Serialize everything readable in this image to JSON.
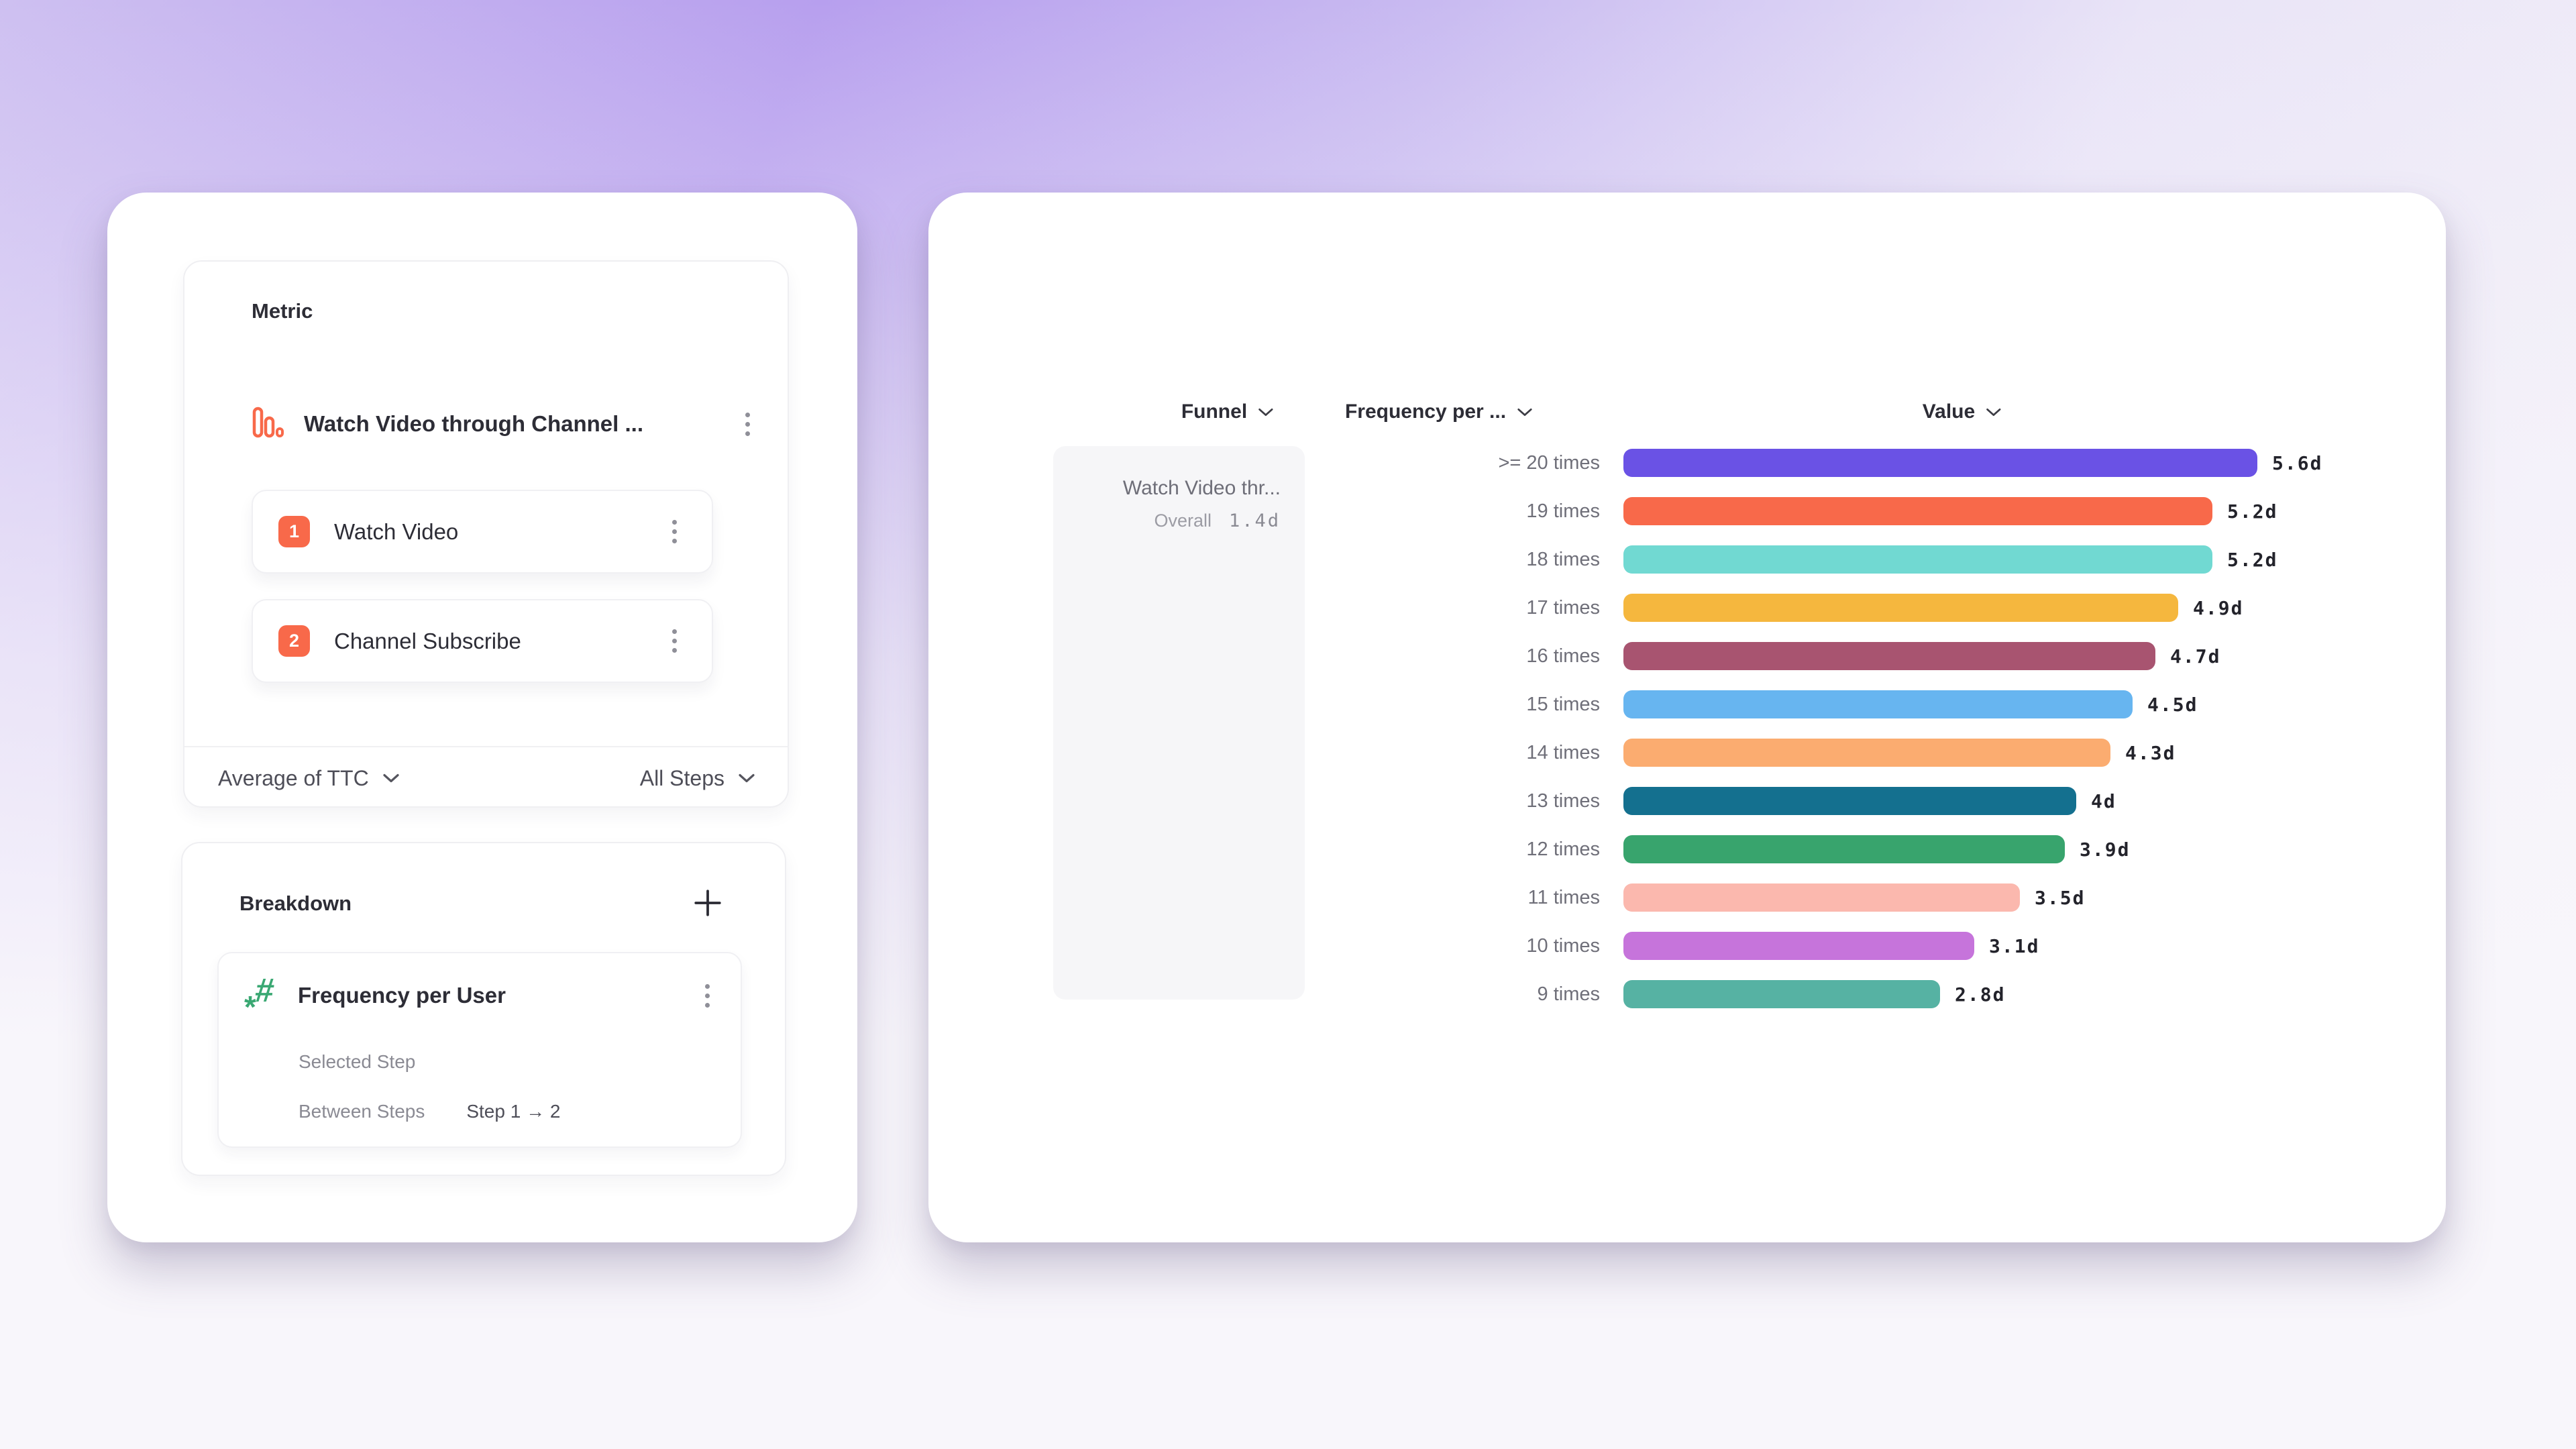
{
  "left_panel": {
    "metric_card": {
      "title": "Metric",
      "metric_name": "Watch Video through Channel ...",
      "metric_icon": "funnel-chart-icon",
      "steps": [
        {
          "index": "1",
          "label": "Watch Video"
        },
        {
          "index": "2",
          "label": "Channel Subscribe"
        }
      ],
      "aggregation_label": "Average of TTC",
      "steps_filter_label": "All Steps"
    },
    "breakdown_card": {
      "title": "Breakdown",
      "add_icon": "plus-icon",
      "property": {
        "name": "Frequency per User",
        "icon": "number-property-icon",
        "selected_step_label": "Selected Step",
        "between_steps_label": "Between Steps",
        "between_steps_value": "Step 1 → 2"
      }
    }
  },
  "right_panel": {
    "column_headers": [
      {
        "label": "Funnel"
      },
      {
        "label": "Frequency per ..."
      },
      {
        "label": "Value"
      }
    ],
    "funnel_cell": {
      "name": "Watch Video thr...",
      "overall_label": "Overall",
      "overall_value": "1.4d"
    }
  },
  "chart_data": {
    "type": "bar",
    "orientation": "horizontal",
    "title": "",
    "xlabel": "Value (days)",
    "ylabel": "Frequency per User",
    "categories": [
      ">= 20 times",
      "19 times",
      "18 times",
      "17 times",
      "16 times",
      "15 times",
      "14 times",
      "13 times",
      "12 times",
      "11 times",
      "10 times",
      "9 times"
    ],
    "values": [
      5.6,
      5.2,
      5.2,
      4.9,
      4.7,
      4.5,
      4.3,
      4.0,
      3.9,
      3.5,
      3.1,
      2.8
    ],
    "value_labels": [
      "5.6d",
      "5.2d",
      "5.2d",
      "4.9d",
      "4.7d",
      "4.5d",
      "4.3d",
      "4d",
      "3.9d",
      "3.5d",
      "3.1d",
      "2.8d"
    ],
    "unit": "d",
    "xlim": [
      0,
      5.6
    ],
    "grid": false,
    "legend": false,
    "bar_colors": [
      "#6A52E5",
      "#F8694A",
      "#71D9D2",
      "#F5B73E",
      "#A85470",
      "#67B5F0",
      "#FBAC70",
      "#14708F",
      "#38A46D",
      "#FBB8AE",
      "#C674DB",
      "#56B2A3"
    ]
  },
  "colors": {
    "accent_orange": "#F8694A",
    "accent_green": "#3AA873",
    "text_dark": "#2D2D36",
    "text_gray": "#6F6F79",
    "text_light": "#9C9CA4",
    "card_bg": "#FFFFFF",
    "funnel_cell_bg": "#F6F6F8"
  }
}
